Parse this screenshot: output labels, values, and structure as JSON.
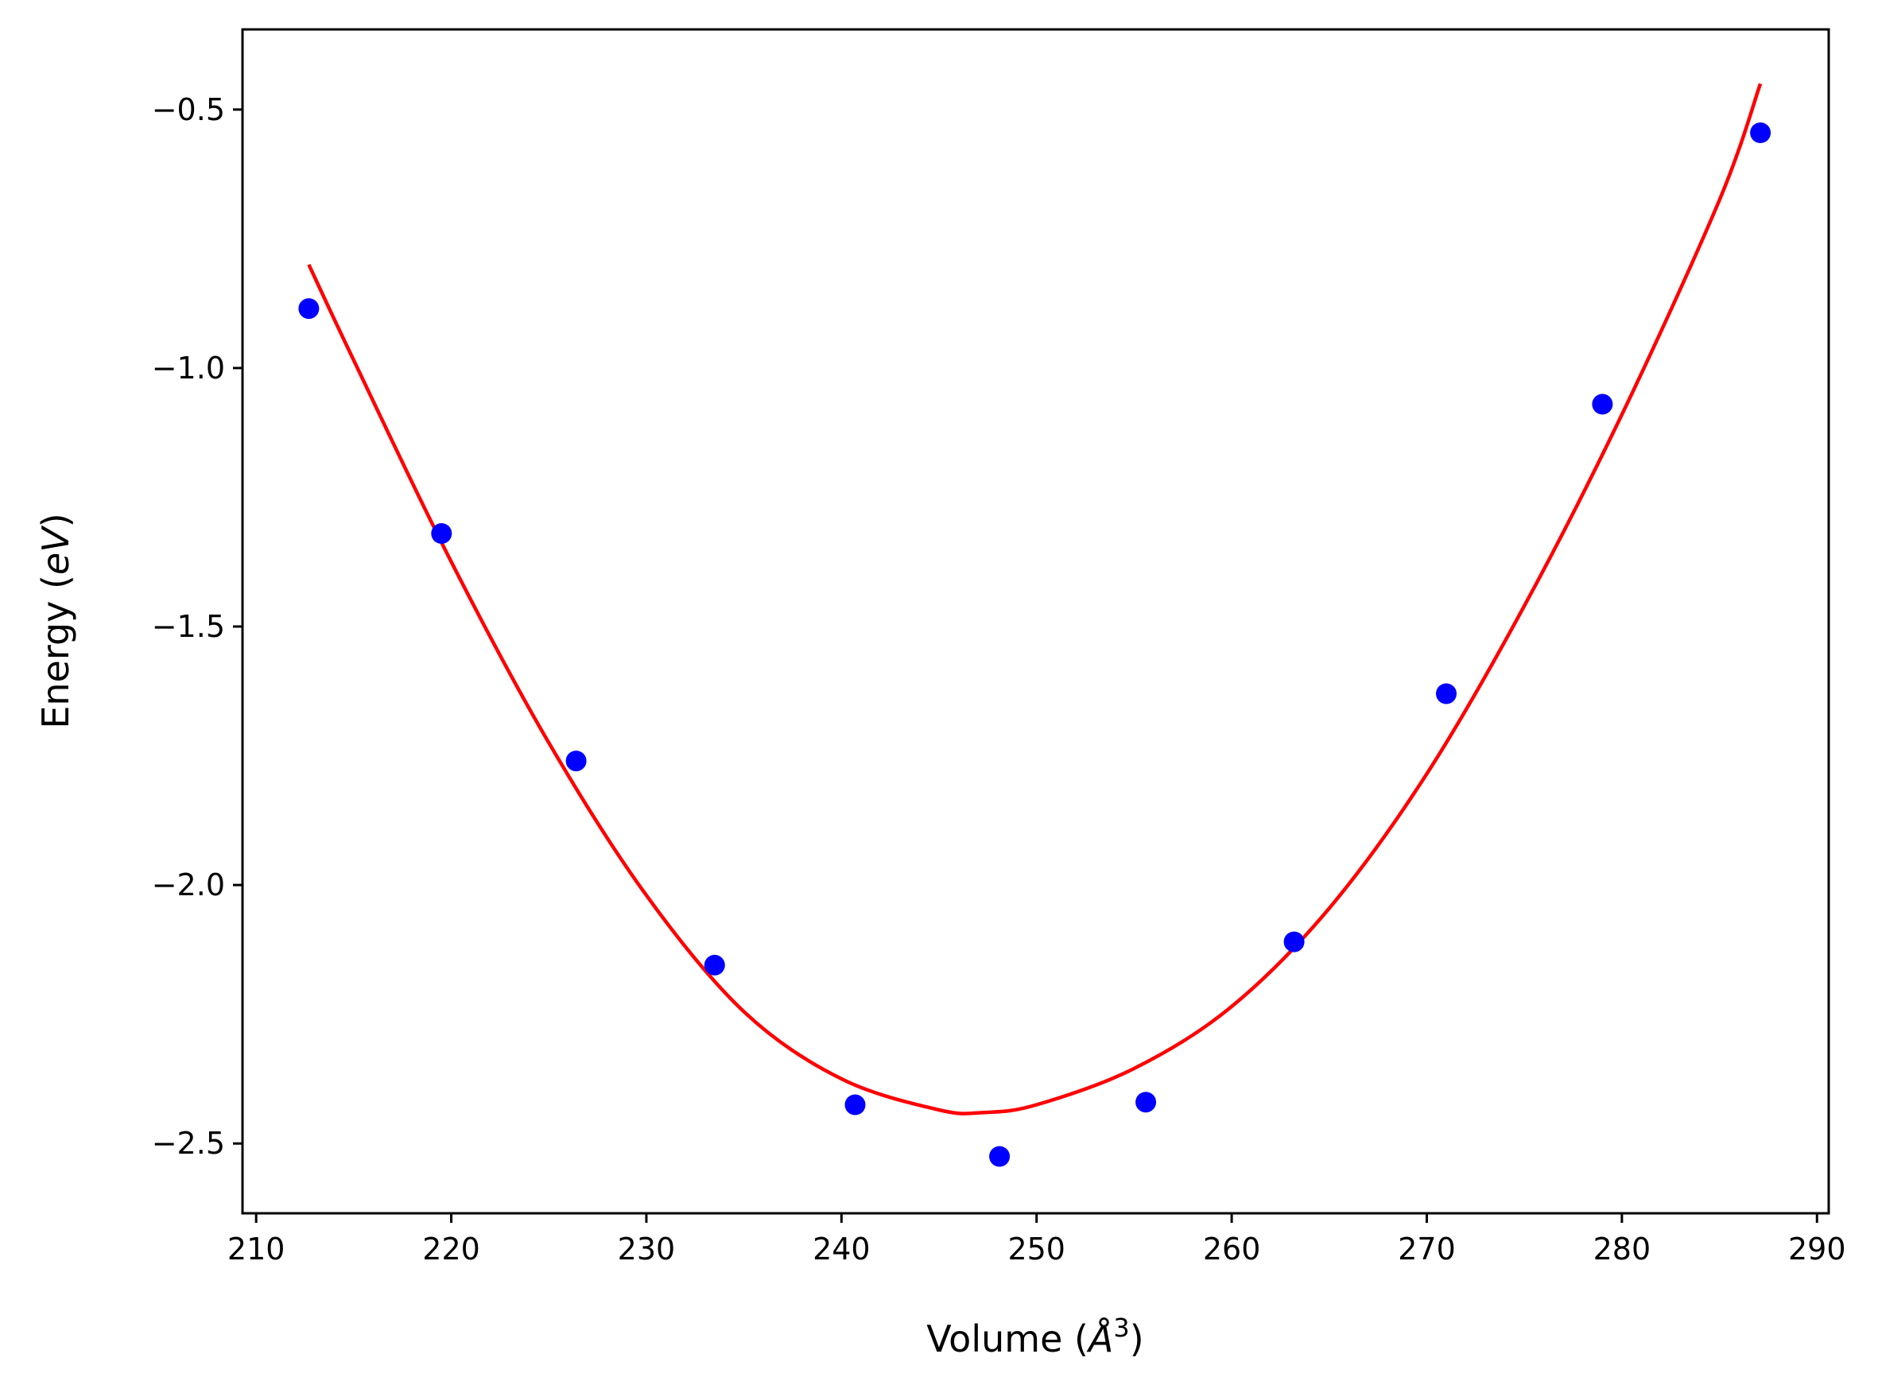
{
  "colors": {
    "points": "#0000ff",
    "fit": "#ff0000",
    "axes": "#000000",
    "background": "#ffffff"
  },
  "chart_data": {
    "type": "scatter",
    "title": "",
    "xlabel": "Volume (Å³)",
    "xlabel_parts": {
      "prefix": "Volume (",
      "unit": "Å",
      "exp": "3",
      "suffix": ")"
    },
    "ylabel": "Energy (eV)",
    "ylabel_parts": {
      "prefix": "Energy (",
      "unit": "eV",
      "suffix": ")"
    },
    "xlim": [
      209.3,
      290.6
    ],
    "ylim": [
      -2.635,
      -0.345
    ],
    "xticks": [
      210,
      220,
      230,
      240,
      250,
      260,
      270,
      280,
      290
    ],
    "xtick_labels": [
      "210",
      "220",
      "230",
      "240",
      "250",
      "260",
      "270",
      "280",
      "290"
    ],
    "yticks": [
      -0.5,
      -1.0,
      -1.5,
      -2.0,
      -2.5
    ],
    "ytick_labels": [
      "−0.5",
      "−1.0",
      "−1.5",
      "−2.0",
      "−2.5"
    ],
    "grid": false,
    "legend": "none",
    "series": [
      {
        "name": "data",
        "kind": "scatter",
        "x": [
          212.7,
          219.5,
          226.4,
          233.5,
          240.7,
          248.1,
          255.6,
          263.2,
          271.0,
          279.0,
          287.1
        ],
        "y": [
          -0.885,
          -1.32,
          -1.76,
          -2.155,
          -2.425,
          -2.525,
          -2.42,
          -2.11,
          -1.63,
          -1.07,
          -0.545
        ]
      },
      {
        "name": "fit",
        "kind": "line",
        "x": [
          212.7,
          215,
          220,
          225,
          230,
          235,
          240,
          245,
          247.3,
          250,
          255,
          260,
          265,
          270,
          275,
          280,
          285,
          287.1
        ],
        "y": [
          -0.8,
          -0.985,
          -1.375,
          -1.725,
          -2.02,
          -2.245,
          -2.375,
          -2.435,
          -2.44,
          -2.425,
          -2.355,
          -2.235,
          -2.045,
          -1.785,
          -1.46,
          -1.09,
          -0.675,
          -0.45
        ]
      }
    ]
  }
}
